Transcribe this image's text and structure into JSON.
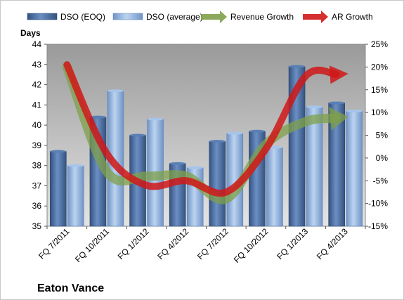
{
  "chart_data": {
    "type": "bar",
    "company": "Eaton Vance",
    "ylabel_left": "Days",
    "categories": [
      "FQ 7/2011",
      "FQ 10/2011",
      "FQ 1/2012",
      "FQ 4/2012",
      "FQ 7/2012",
      "FQ 10/2012",
      "FQ 1/2013",
      "FQ 4/2013"
    ],
    "left_axis": {
      "min": 35,
      "max": 44,
      "step": 1,
      "ticks": [
        "35",
        "36",
        "37",
        "38",
        "39",
        "40",
        "41",
        "42",
        "43",
        "44"
      ]
    },
    "right_axis": {
      "min": -15,
      "max": 25,
      "step": 5,
      "ticks": [
        "-15%",
        "-10%",
        "-5%",
        "0%",
        "5%",
        "10%",
        "15%",
        "20%",
        "25%"
      ]
    },
    "series": [
      {
        "name": "DSO (EOQ)",
        "kind": "bar",
        "axis": "left",
        "color": "#4a6fa5",
        "values": [
          38.7,
          40.4,
          39.5,
          38.1,
          39.2,
          39.7,
          42.9,
          41.1
        ]
      },
      {
        "name": "DSO (average)",
        "kind": "bar",
        "axis": "left",
        "color": "#8fb3e0",
        "values": [
          38.0,
          41.7,
          40.3,
          37.9,
          39.6,
          38.9,
          40.9,
          40.7
        ]
      },
      {
        "name": "Revenue Growth",
        "kind": "line",
        "axis": "right",
        "color": "#7fa04a",
        "values": [
          20,
          -3,
          -4,
          -4,
          -9,
          3,
          8,
          9
        ]
      },
      {
        "name": "AR Growth",
        "kind": "line",
        "axis": "right",
        "color": "#d01818",
        "values": [
          20.5,
          1,
          -6,
          -5,
          -7.5,
          2,
          18,
          18.5
        ]
      }
    ],
    "legend_position": "top",
    "grid": false
  }
}
